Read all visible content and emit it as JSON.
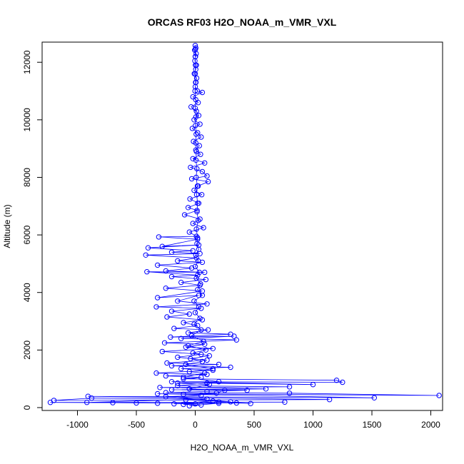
{
  "chart_data": {
    "type": "scatter",
    "title": "ORCAS RF03 H2O_NOAA_m_VMR_VXL",
    "xlabel": "H2O_NOAA_m_VMR_VXL",
    "ylabel": "Altitude (m)",
    "xlim": [
      -1300,
      2100
    ],
    "ylim": [
      -100,
      12700
    ],
    "x_ticks": [
      -1000,
      -500,
      0,
      500,
      1000,
      1500,
      2000
    ],
    "x_tick_labels": [
      "-1000",
      "-500",
      "0",
      "500",
      "1000",
      "1500",
      "2000"
    ],
    "y_ticks": [
      0,
      2000,
      4000,
      6000,
      8000,
      10000,
      12000
    ],
    "y_tick_labels": [
      "0",
      "2000",
      "4000",
      "6000",
      "8000",
      "10000",
      "12000"
    ],
    "series_style": {
      "color": "#0000ff",
      "marker": "open-circle",
      "line": true
    },
    "points": [
      [
        0,
        12580
      ],
      [
        5,
        12500
      ],
      [
        -5,
        12420
      ],
      [
        8,
        12300
      ],
      [
        2,
        12200
      ],
      [
        -3,
        12050
      ],
      [
        10,
        11900
      ],
      [
        4,
        11750
      ],
      [
        -8,
        11600
      ],
      [
        12,
        11450
      ],
      [
        6,
        11300
      ],
      [
        0,
        11150
      ],
      [
        18,
        11000
      ],
      [
        60,
        10950
      ],
      [
        -20,
        10800
      ],
      [
        25,
        10600
      ],
      [
        -35,
        10450
      ],
      [
        10,
        10300
      ],
      [
        30,
        10150
      ],
      [
        -10,
        10000
      ],
      [
        40,
        9850
      ],
      [
        -25,
        9700
      ],
      [
        20,
        9550
      ],
      [
        50,
        9400
      ],
      [
        -15,
        9250
      ],
      [
        35,
        9100
      ],
      [
        5,
        8950
      ],
      [
        45,
        8800
      ],
      [
        -20,
        8650
      ],
      [
        80,
        8500
      ],
      [
        -40,
        8350
      ],
      [
        60,
        8200
      ],
      [
        100,
        8050
      ],
      [
        -30,
        7950
      ],
      [
        110,
        7850
      ],
      [
        25,
        7700
      ],
      [
        -10,
        7550
      ],
      [
        55,
        7400
      ],
      [
        -45,
        7250
      ],
      [
        30,
        7100
      ],
      [
        -60,
        6950
      ],
      [
        15,
        6850
      ],
      [
        -90,
        6700
      ],
      [
        40,
        6550
      ],
      [
        -20,
        6400
      ],
      [
        70,
        6250
      ],
      [
        -50,
        6100
      ],
      [
        10,
        5950
      ],
      [
        -310,
        5930
      ],
      [
        20,
        5850
      ],
      [
        -280,
        5600
      ],
      [
        30,
        5650
      ],
      [
        -400,
        5550
      ],
      [
        -20,
        5450
      ],
      [
        -200,
        5400
      ],
      [
        40,
        5350
      ],
      [
        -420,
        5300
      ],
      [
        10,
        5200
      ],
      [
        -150,
        5100
      ],
      [
        60,
        5050
      ],
      [
        -320,
        4950
      ],
      [
        -30,
        4850
      ],
      [
        -250,
        4750
      ],
      [
        80,
        4700
      ],
      [
        -410,
        4720
      ],
      [
        20,
        4600
      ],
      [
        -200,
        4550
      ],
      [
        90,
        4450
      ],
      [
        -120,
        4350
      ],
      [
        40,
        4250
      ],
      [
        -250,
        4150
      ],
      [
        60,
        4050
      ],
      [
        -320,
        3820
      ],
      [
        30,
        3900
      ],
      [
        -150,
        3700
      ],
      [
        100,
        3600
      ],
      [
        -330,
        3500
      ],
      [
        50,
        3450
      ],
      [
        -200,
        3350
      ],
      [
        -50,
        3250
      ],
      [
        -240,
        3150
      ],
      [
        60,
        3050
      ],
      [
        -100,
        2950
      ],
      [
        20,
        2850
      ],
      [
        -180,
        2750
      ],
      [
        110,
        2700
      ],
      [
        -60,
        2600
      ],
      [
        300,
        2550
      ],
      [
        -210,
        2450
      ],
      [
        330,
        2480
      ],
      [
        -120,
        2400
      ],
      [
        350,
        2350
      ],
      [
        -260,
        2250
      ],
      [
        80,
        2200
      ],
      [
        -80,
        2100
      ],
      [
        150,
        2050
      ],
      [
        -280,
        1950
      ],
      [
        50,
        1850
      ],
      [
        -150,
        1750
      ],
      [
        100,
        1650
      ],
      [
        -240,
        1550
      ],
      [
        200,
        1500
      ],
      [
        -200,
        1450
      ],
      [
        300,
        1400
      ],
      [
        -120,
        1350
      ],
      [
        150,
        1300
      ],
      [
        -330,
        1200
      ],
      [
        100,
        1150
      ],
      [
        -250,
        1100
      ],
      [
        50,
        1050
      ],
      [
        -100,
        1000
      ],
      [
        1200,
        950
      ],
      [
        1250,
        880
      ],
      [
        -200,
        900
      ],
      [
        1000,
        800
      ],
      [
        100,
        850
      ],
      [
        -150,
        760
      ],
      [
        800,
        720
      ],
      [
        -300,
        700
      ],
      [
        600,
        650
      ],
      [
        -200,
        620
      ],
      [
        440,
        600
      ],
      [
        100,
        560
      ],
      [
        -250,
        520
      ],
      [
        800,
        500
      ],
      [
        2070,
        420
      ],
      [
        -320,
        480
      ],
      [
        1520,
        340
      ],
      [
        -910,
        390
      ],
      [
        1140,
        280
      ],
      [
        -1200,
        250
      ],
      [
        -880,
        330
      ],
      [
        100,
        300
      ],
      [
        -920,
        180
      ],
      [
        760,
        190
      ],
      [
        -1230,
        180
      ],
      [
        -700,
        170
      ],
      [
        -500,
        160
      ],
      [
        -320,
        150
      ],
      [
        350,
        160
      ],
      [
        470,
        140
      ],
      [
        200,
        200
      ],
      [
        0,
        130
      ],
      [
        -100,
        110
      ],
      [
        50,
        90
      ],
      [
        -50,
        60
      ],
      [
        200,
        150
      ],
      [
        -180,
        130
      ],
      [
        150,
        230
      ],
      [
        -80,
        270
      ],
      [
        300,
        200
      ],
      [
        -250,
        380
      ],
      [
        50,
        420
      ],
      [
        -100,
        460
      ],
      [
        180,
        500
      ],
      [
        250,
        600
      ],
      [
        -50,
        650
      ],
      [
        120,
        800
      ],
      [
        -150,
        850
      ],
      [
        200,
        900
      ],
      [
        -100,
        1050
      ],
      [
        80,
        1200
      ],
      [
        -50,
        1250
      ],
      [
        150,
        1350
      ],
      [
        -80,
        1500
      ],
      [
        60,
        1600
      ],
      [
        -40,
        1700
      ],
      [
        120,
        1800
      ],
      [
        -20,
        1900
      ],
      [
        90,
        2000
      ],
      [
        -60,
        2150
      ],
      [
        70,
        2300
      ],
      [
        -30,
        2500
      ],
      [
        50,
        2700
      ],
      [
        -10,
        2900
      ],
      [
        40,
        3100
      ],
      [
        0,
        3300
      ],
      [
        30,
        3500
      ],
      [
        -10,
        3700
      ],
      [
        60,
        3900
      ],
      [
        20,
        4100
      ],
      [
        45,
        4300
      ],
      [
        10,
        4500
      ],
      [
        35,
        4700
      ],
      [
        0,
        4900
      ],
      [
        25,
        5100
      ],
      [
        5,
        5300
      ],
      [
        30,
        5500
      ],
      [
        15,
        5700
      ],
      [
        20,
        5900
      ],
      [
        10,
        6200
      ],
      [
        25,
        6500
      ],
      [
        15,
        6800
      ],
      [
        20,
        7100
      ],
      [
        12,
        7400
      ],
      [
        18,
        7700
      ],
      [
        8,
        8000
      ],
      [
        14,
        8300
      ],
      [
        6,
        8600
      ],
      [
        10,
        8900
      ],
      [
        4,
        9200
      ],
      [
        8,
        9500
      ],
      [
        2,
        9800
      ],
      [
        6,
        10100
      ],
      [
        0,
        10400
      ],
      [
        4,
        10700
      ],
      [
        -2,
        11000
      ],
      [
        3,
        11300
      ],
      [
        0,
        11600
      ],
      [
        2,
        11900
      ],
      [
        0,
        12200
      ],
      [
        1,
        12450
      ]
    ]
  }
}
